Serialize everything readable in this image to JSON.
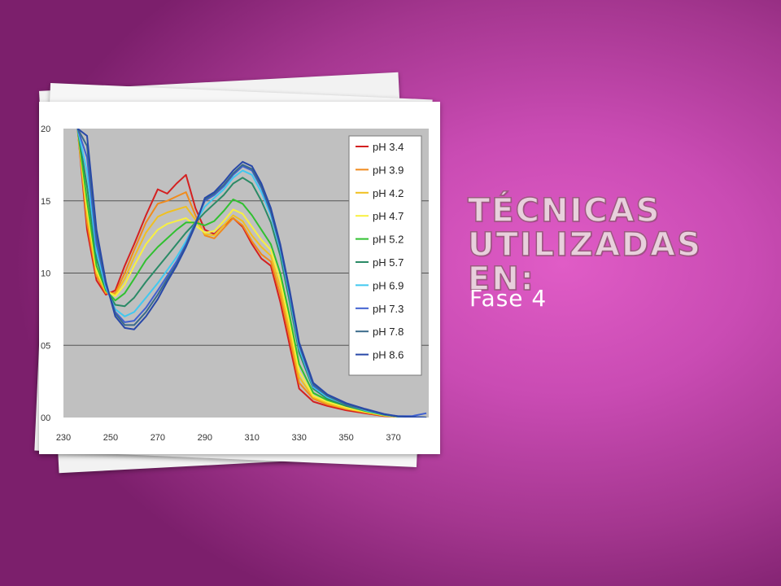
{
  "slide": {
    "title": "Técnicas utilizadas en:",
    "subtitle": "Fase 4"
  },
  "chart_data": {
    "type": "line",
    "title": "",
    "xlabel": "",
    "ylabel": "",
    "xlim": [
      230,
      385
    ],
    "ylim": [
      0,
      20
    ],
    "xticks": [
      230,
      250,
      270,
      290,
      310,
      330,
      350,
      370
    ],
    "xtick_labels": [
      "230",
      "250",
      "270",
      "290",
      "310",
      "330",
      "350",
      "370"
    ],
    "yticks": [
      0,
      5,
      10,
      15,
      20
    ],
    "ytick_labels": [
      "00",
      "05",
      "10",
      "15",
      "20"
    ],
    "grid": "horizontal",
    "legend_position": "right",
    "background_color": "#c0c0c0",
    "x": [
      236,
      240,
      244,
      248,
      252,
      256,
      260,
      265,
      270,
      274,
      278,
      282,
      286,
      290,
      294,
      298,
      302,
      306,
      310,
      314,
      318,
      322,
      326,
      330,
      336,
      342,
      350,
      358,
      366,
      372,
      378,
      384
    ],
    "series": [
      {
        "name": "pH 3.4",
        "color": "#d42020",
        "values": [
          20,
          13,
          9.5,
          8.5,
          8.8,
          10.5,
          12,
          14,
          15.8,
          15.5,
          16.2,
          16.8,
          14.5,
          13,
          12.7,
          13.3,
          13.8,
          13.2,
          12,
          11,
          10.5,
          8,
          5,
          2,
          1.1,
          0.8,
          0.5,
          0.3,
          0.1,
          0.05,
          0.03,
          0
        ]
      },
      {
        "name": "pH 3.9",
        "color": "#f08a1c",
        "values": [
          20,
          13.5,
          9.8,
          8.6,
          8.6,
          10,
          11.6,
          13.5,
          14.8,
          15,
          15.3,
          15.6,
          14,
          12.6,
          12.4,
          13.1,
          13.8,
          13.3,
          12.2,
          11.3,
          10.8,
          8.5,
          5.5,
          2.4,
          1.3,
          0.9,
          0.6,
          0.35,
          0.12,
          0.05,
          0.03,
          0
        ]
      },
      {
        "name": "pH 4.2",
        "color": "#f0c020",
        "values": [
          20,
          14,
          10,
          8.7,
          8.5,
          9.6,
          11.1,
          12.8,
          13.9,
          14.2,
          14.4,
          14.6,
          13.7,
          12.7,
          12.6,
          13.3,
          14,
          13.6,
          12.6,
          11.8,
          11.2,
          9,
          6,
          2.8,
          1.4,
          1,
          0.6,
          0.4,
          0.15,
          0.05,
          0.03,
          0
        ]
      },
      {
        "name": "pH 4.7",
        "color": "#f8f040",
        "values": [
          20,
          14.5,
          10.2,
          8.8,
          8.4,
          9.2,
          10.5,
          12,
          13,
          13.4,
          13.6,
          13.8,
          13.3,
          12.8,
          12.9,
          13.6,
          14.4,
          14.1,
          13.2,
          12.3,
          11.6,
          9.5,
          6.5,
          3.2,
          1.5,
          1.1,
          0.7,
          0.4,
          0.15,
          0.05,
          0.03,
          0
        ]
      },
      {
        "name": "pH 5.2",
        "color": "#30c030",
        "values": [
          20,
          15,
          10.5,
          8.8,
          8.1,
          8.6,
          9.6,
          10.9,
          11.8,
          12.4,
          13,
          13.5,
          13.5,
          13.3,
          13.6,
          14.3,
          15.1,
          14.8,
          14,
          13,
          12,
          10,
          7,
          3.7,
          1.7,
          1.2,
          0.8,
          0.45,
          0.18,
          0.06,
          0.03,
          0
        ]
      },
      {
        "name": "pH 5.7",
        "color": "#2a8a66",
        "values": [
          20,
          16,
          11,
          8.9,
          7.8,
          7.7,
          8.3,
          9.4,
          10.4,
          11.2,
          12,
          12.8,
          13.5,
          14.2,
          14.8,
          15.4,
          16.2,
          16.6,
          16.2,
          15,
          13.5,
          11.2,
          8,
          4.5,
          2,
          1.3,
          0.8,
          0.5,
          0.2,
          0.06,
          0.03,
          0
        ]
      },
      {
        "name": "pH 6.9",
        "color": "#40c8f0",
        "values": [
          20,
          17,
          11.5,
          9,
          7.5,
          7,
          7.3,
          8.3,
          9.3,
          10.2,
          11.1,
          12.2,
          13.5,
          14.6,
          15.2,
          15.8,
          16.6,
          17.1,
          16.8,
          15.6,
          14,
          11.6,
          8.4,
          4.8,
          2.1,
          1.4,
          0.9,
          0.5,
          0.2,
          0.07,
          0.03,
          0
        ]
      },
      {
        "name": "pH 7.3",
        "color": "#4060d0",
        "values": [
          20,
          18,
          12,
          9.2,
          7.3,
          6.6,
          6.7,
          7.6,
          8.8,
          9.8,
          10.8,
          12,
          13.5,
          15,
          15.4,
          16,
          16.8,
          17.4,
          17.1,
          15.9,
          14.2,
          11.8,
          8.6,
          5,
          2.2,
          1.5,
          0.9,
          0.55,
          0.22,
          0.1,
          0.1,
          0.3
        ]
      },
      {
        "name": "pH 7.8",
        "color": "#3a6a8a",
        "values": [
          20,
          18.8,
          12.5,
          9.3,
          7.2,
          6.4,
          6.4,
          7.3,
          8.5,
          9.6,
          10.6,
          11.9,
          13.4,
          15.1,
          15.5,
          16.1,
          16.9,
          17.5,
          17.2,
          16,
          14.3,
          11.9,
          8.7,
          5.1,
          2.3,
          1.5,
          0.9,
          0.55,
          0.22,
          0.08,
          0.04,
          0
        ]
      },
      {
        "name": "pH 8.6",
        "color": "#2848a8",
        "values": [
          20,
          19.5,
          13,
          9.4,
          7,
          6.2,
          6.1,
          7,
          8.2,
          9.4,
          10.5,
          11.8,
          13.3,
          15.2,
          15.6,
          16.3,
          17.1,
          17.7,
          17.4,
          16.2,
          14.5,
          12,
          8.8,
          5.2,
          2.4,
          1.6,
          1,
          0.6,
          0.25,
          0.08,
          0.04,
          0
        ]
      }
    ]
  }
}
